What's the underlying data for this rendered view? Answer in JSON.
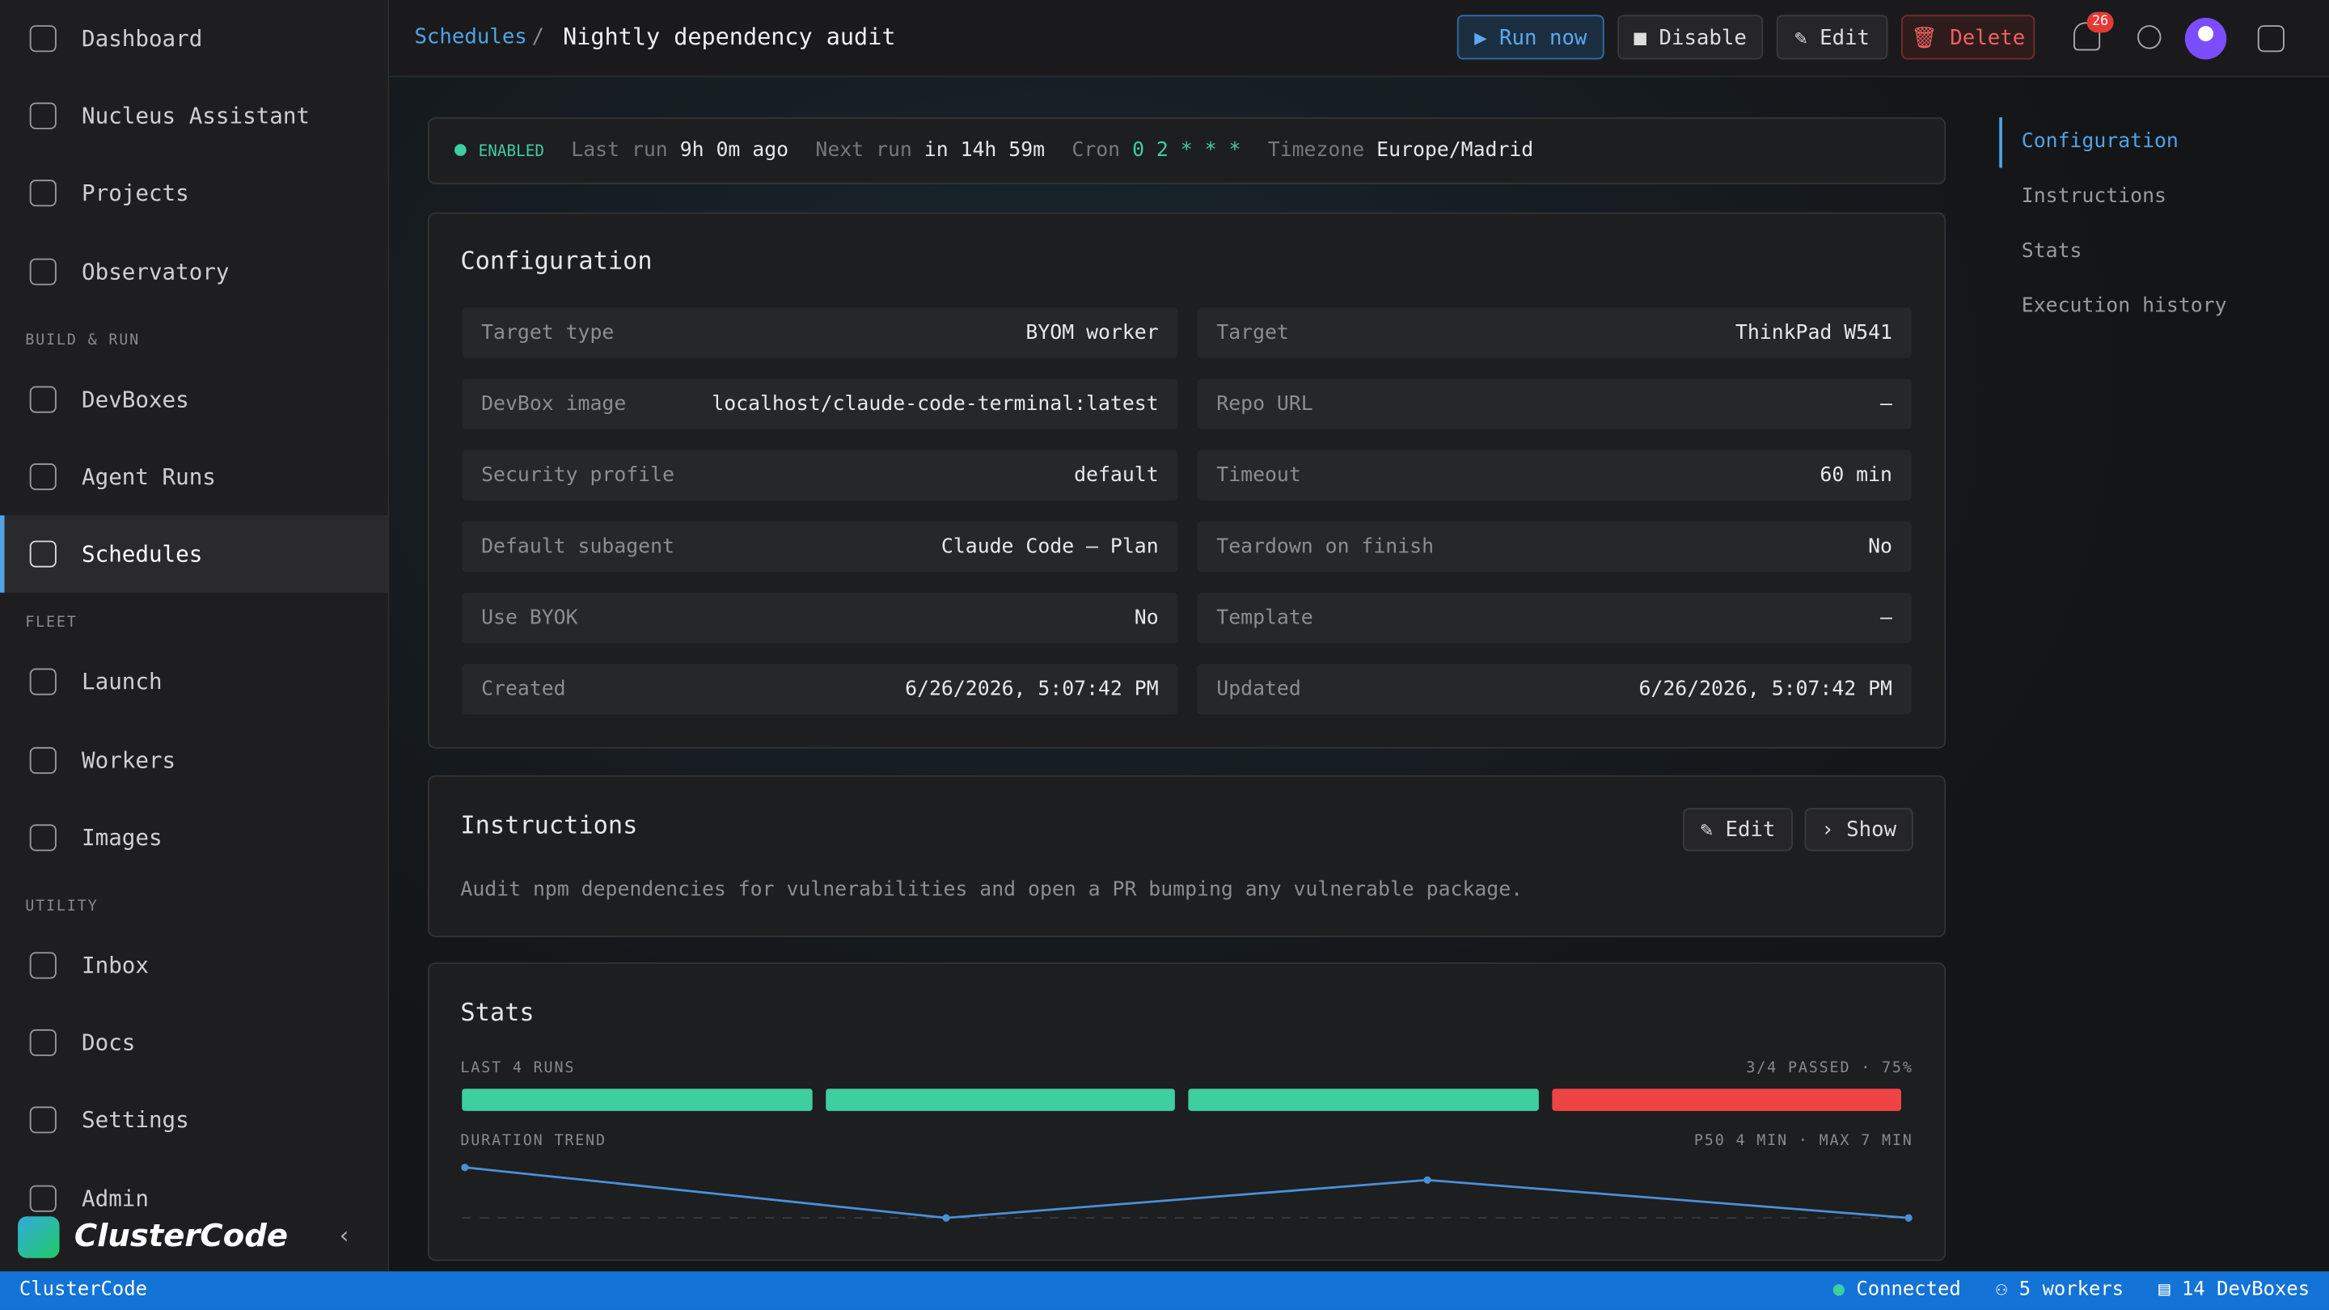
{
  "sidebar": {
    "nav": [
      {
        "label": "Dashboard"
      },
      {
        "label": "Nucleus Assistant"
      },
      {
        "label": "Projects"
      },
      {
        "label": "Observatory"
      },
      {
        "heading": "BUILD & RUN"
      },
      {
        "label": "DevBoxes"
      },
      {
        "label": "Agent Runs"
      },
      {
        "label": "Schedules",
        "active": true
      },
      {
        "heading": "FLEET"
      },
      {
        "label": "Launch"
      },
      {
        "label": "Workers"
      },
      {
        "label": "Images"
      },
      {
        "heading": "UTILITY"
      },
      {
        "label": "Inbox"
      },
      {
        "label": "Docs"
      },
      {
        "label": "Settings"
      },
      {
        "label": "Admin"
      }
    ],
    "brand": "ClusterCode"
  },
  "header": {
    "breadcrumb": "Schedules",
    "separator": "/",
    "title": "Nightly dependency audit",
    "buttons": {
      "run": "Run now",
      "disable": "Disable",
      "edit": "Edit",
      "delete": "Delete"
    },
    "notifications": 26
  },
  "status": {
    "state": "ENABLED",
    "last_run_label": "Last run",
    "last_run": "9h 0m ago",
    "next_run_label": "Next run",
    "next_run": "in 14h 59m",
    "cron_label": "Cron",
    "cron": "0 2 * * *",
    "timezone_label": "Timezone",
    "timezone": "Europe/Madrid"
  },
  "configuration": {
    "title": "Configuration",
    "rows": [
      [
        [
          "Target type",
          "BYOM worker"
        ],
        [
          "Target",
          "ThinkPad W541"
        ]
      ],
      [
        [
          "DevBox image",
          "localhost/claude-code-terminal:latest"
        ],
        [
          "Repo URL",
          "—"
        ]
      ],
      [
        [
          "Security profile",
          "default"
        ],
        [
          "Timeout",
          "60 min"
        ]
      ],
      [
        [
          "Default subagent",
          "Claude Code — Plan"
        ],
        [
          "Teardown on finish",
          "No"
        ]
      ],
      [
        [
          "Use BYOK",
          "No"
        ],
        [
          "Template",
          "—"
        ]
      ],
      [
        [
          "Created",
          "6/26/2026, 5:07:42 PM"
        ],
        [
          "Updated",
          "6/26/2026, 5:07:42 PM"
        ]
      ]
    ]
  },
  "instructions": {
    "title": "Instructions",
    "edit": "Edit",
    "show": "Show",
    "text": "Audit npm dependencies for vulnerabilities and open a PR bumping any vulnerable package."
  },
  "stats": {
    "title": "Stats",
    "runs_label": "LAST 4 RUNS",
    "runs_summary": "3/4 PASSED · 75%",
    "run_colors": [
      "#3ecf9e",
      "#3ecf9e",
      "#3ecf9e",
      "#ef4444"
    ],
    "trend_label": "DURATION TREND",
    "trend_summary": "P50 4 MIN · MAX 7 MIN",
    "durations": [
      7,
      3,
      6,
      3
    ],
    "trend_color": "#4a90d9"
  },
  "toc": [
    "Configuration",
    "Instructions",
    "Stats",
    "Execution history"
  ],
  "statusbar": {
    "brand": "ClusterCode",
    "connected": "Connected",
    "workers": "5 workers",
    "devboxes": "14 DevBoxes"
  }
}
